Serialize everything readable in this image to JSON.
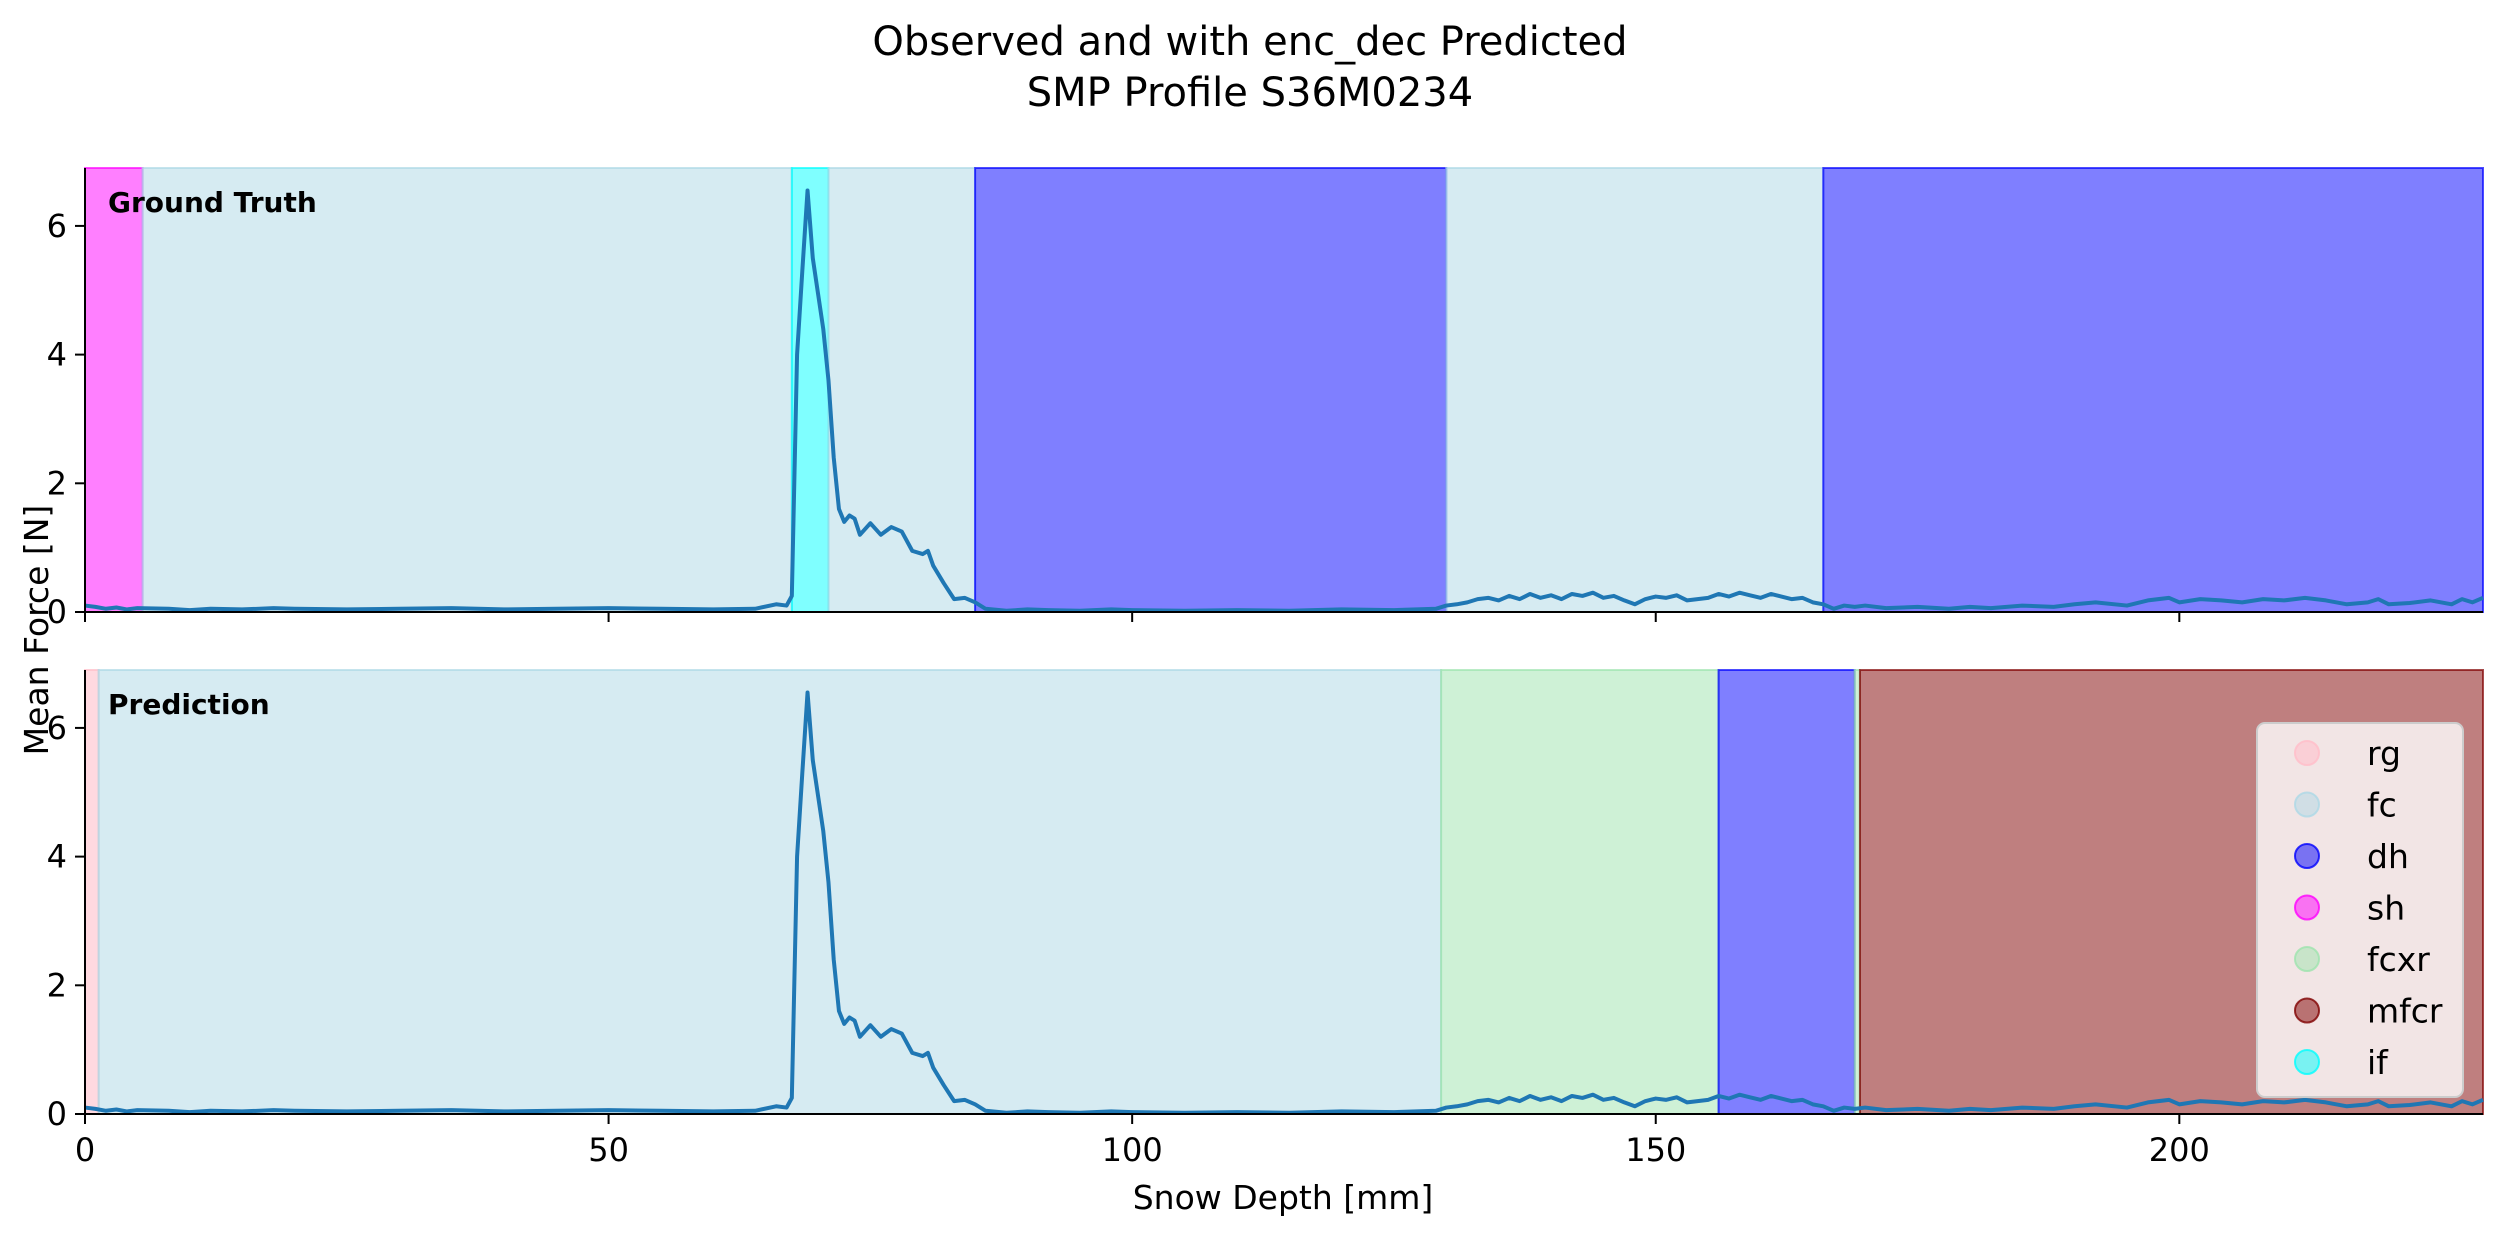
{
  "chart_data": {
    "type": "line",
    "title": "Observed and with enc_dec Predicted",
    "subtitle": "SMP Profile S36M0234",
    "xlabel": "Snow Depth [mm]",
    "ylabel": "Mean Force [N]",
    "xlim": [
      0,
      229
    ],
    "ylim": [
      0,
      6.9
    ],
    "xticks": [
      0,
      50,
      100,
      150,
      200
    ],
    "yticks": [
      0,
      2,
      4,
      6
    ],
    "grid": false,
    "legend_position": "right",
    "legend": [
      {
        "label": "rg",
        "color": "#ffc0cb",
        "alpha": 0.6
      },
      {
        "label": "fc",
        "color": "#add8e6",
        "alpha": 0.5
      },
      {
        "label": "dh",
        "color": "#0000ff",
        "alpha": 0.5
      },
      {
        "label": "sh",
        "color": "#ff00ff",
        "alpha": 0.5
      },
      {
        "label": "fcxr",
        "color": "#9de4ae",
        "alpha": 0.5
      },
      {
        "label": "mfcr",
        "color": "#800000",
        "alpha": 0.5
      },
      {
        "label": "if",
        "color": "#00ffff",
        "alpha": 0.5
      }
    ],
    "panels": [
      {
        "label": "Ground Truth",
        "segments": [
          {
            "class": "sh",
            "start": 0,
            "end": 5.5
          },
          {
            "class": "fc",
            "start": 5.5,
            "end": 67.5
          },
          {
            "class": "if",
            "start": 67.5,
            "end": 71
          },
          {
            "class": "fc",
            "start": 71,
            "end": 85
          },
          {
            "class": "dh",
            "start": 85,
            "end": 130
          },
          {
            "class": "fc",
            "start": 130,
            "end": 166
          },
          {
            "class": "dh",
            "start": 166,
            "end": 229
          }
        ]
      },
      {
        "label": "Prediction",
        "segments": [
          {
            "class": "rg",
            "start": 0,
            "end": 1.3
          },
          {
            "class": "fc",
            "start": 1.3,
            "end": 129.5
          },
          {
            "class": "fcxr",
            "start": 129.5,
            "end": 156
          },
          {
            "class": "dh",
            "start": 156,
            "end": 169
          },
          {
            "class": "fcxr",
            "start": 169,
            "end": 169.5
          },
          {
            "class": "mfcr",
            "start": 169.5,
            "end": 229
          }
        ]
      }
    ],
    "series": [
      {
        "color": "#1f77b4",
        "x": [
          0,
          1,
          2,
          3,
          4,
          5,
          8,
          10,
          12,
          15,
          18,
          20,
          25,
          30,
          35,
          40,
          45,
          50,
          55,
          60,
          64,
          66,
          67,
          67.5,
          68,
          68.5,
          69,
          69.5,
          70,
          70.5,
          71,
          71.5,
          72,
          72.5,
          73,
          73.5,
          74,
          75,
          76,
          77,
          78,
          79,
          80,
          80.5,
          81,
          82,
          83,
          84,
          85,
          86,
          88,
          90,
          92,
          95,
          98,
          100,
          105,
          110,
          115,
          120,
          125,
          129,
          130,
          131,
          132,
          133,
          134,
          135,
          136,
          137,
          138,
          139,
          140,
          141,
          142,
          143,
          144,
          145,
          146,
          147,
          148,
          149,
          150,
          151,
          152,
          153,
          154,
          155,
          156,
          157,
          158,
          159,
          160,
          161,
          162,
          163,
          164,
          165,
          166,
          167,
          168,
          169,
          170,
          172,
          175,
          178,
          180,
          182,
          185,
          188,
          190,
          192,
          195,
          197,
          199,
          200,
          202,
          204,
          206,
          208,
          210,
          212,
          214,
          216,
          218,
          219,
          220,
          222,
          224,
          226,
          227,
          228,
          229
        ],
        "y": [
          0.1,
          0.08,
          0.05,
          0.07,
          0.04,
          0.06,
          0.05,
          0.03,
          0.05,
          0.04,
          0.06,
          0.05,
          0.04,
          0.05,
          0.06,
          0.04,
          0.05,
          0.06,
          0.05,
          0.04,
          0.05,
          0.12,
          0.1,
          0.25,
          4.0,
          5.3,
          6.55,
          5.5,
          4.95,
          4.4,
          3.6,
          2.4,
          1.6,
          1.4,
          1.5,
          1.45,
          1.2,
          1.38,
          1.2,
          1.32,
          1.25,
          0.95,
          0.9,
          0.95,
          0.72,
          0.45,
          0.2,
          0.22,
          0.15,
          0.05,
          0.02,
          0.04,
          0.03,
          0.02,
          0.04,
          0.03,
          0.02,
          0.03,
          0.02,
          0.04,
          0.03,
          0.05,
          0.1,
          0.12,
          0.15,
          0.2,
          0.22,
          0.18,
          0.25,
          0.2,
          0.28,
          0.22,
          0.26,
          0.2,
          0.28,
          0.25,
          0.3,
          0.22,
          0.25,
          0.18,
          0.12,
          0.2,
          0.24,
          0.22,
          0.26,
          0.18,
          0.2,
          0.22,
          0.28,
          0.24,
          0.3,
          0.26,
          0.22,
          0.28,
          0.24,
          0.2,
          0.22,
          0.15,
          0.12,
          0.05,
          0.1,
          0.08,
          0.1,
          0.06,
          0.08,
          0.05,
          0.08,
          0.06,
          0.1,
          0.08,
          0.12,
          0.15,
          0.1,
          0.18,
          0.22,
          0.15,
          0.2,
          0.18,
          0.15,
          0.2,
          0.18,
          0.22,
          0.18,
          0.12,
          0.15,
          0.2,
          0.12,
          0.14,
          0.18,
          0.12,
          0.2,
          0.15,
          0.22
        ]
      }
    ]
  }
}
